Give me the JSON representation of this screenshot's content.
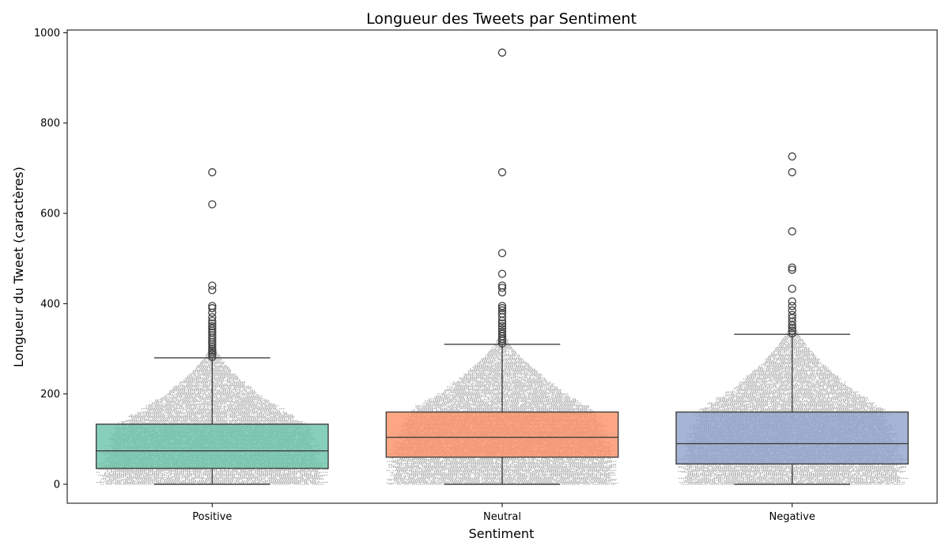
{
  "chart_data": {
    "type": "box",
    "title": "Longueur des Tweets par Sentiment",
    "xlabel": "Sentiment",
    "ylabel": "Longueur du Tweet (caractères)",
    "ylim": [
      -42,
      1006
    ],
    "yticks": [
      0,
      200,
      400,
      600,
      800,
      1000
    ],
    "grid": false,
    "overlay": "dense swarm of individual tweet points",
    "categories": [
      "Positive",
      "Neutral",
      "Negative"
    ],
    "series": [
      {
        "category": "Positive",
        "color": "#66c2a5",
        "min": 0,
        "q1": 35,
        "median": 74,
        "q3": 133,
        "whisker_low": 0,
        "whisker_high": 280,
        "outliers": [
          282,
          288,
          292,
          296,
          300,
          305,
          310,
          315,
          320,
          325,
          330,
          336,
          340,
          345,
          350,
          356,
          362,
          370,
          380,
          390,
          395,
          430,
          440,
          620,
          691
        ]
      },
      {
        "category": "Neutral",
        "color": "#fc8d62",
        "min": 0,
        "q1": 60,
        "median": 104,
        "q3": 160,
        "whisker_low": 0,
        "whisker_high": 310,
        "outliers": [
          312,
          318,
          322,
          328,
          333,
          338,
          344,
          350,
          356,
          362,
          370,
          378,
          385,
          390,
          395,
          425,
          435,
          440,
          466,
          512,
          691,
          956
        ]
      },
      {
        "category": "Negative",
        "color": "#8da0cb",
        "min": 0,
        "q1": 45,
        "median": 90,
        "q3": 160,
        "whisker_low": 0,
        "whisker_high": 332,
        "outliers": [
          334,
          340,
          346,
          352,
          360,
          368,
          375,
          385,
          395,
          405,
          433,
          475,
          480,
          560,
          691,
          726
        ]
      }
    ]
  }
}
